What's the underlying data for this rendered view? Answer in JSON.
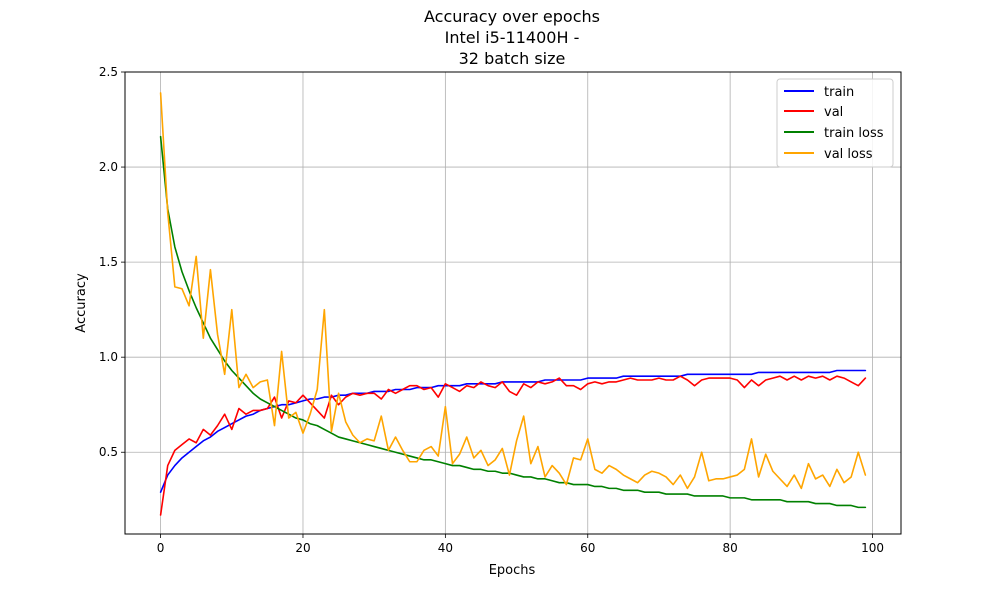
{
  "chart_data": {
    "type": "line",
    "title_lines": [
      "Accuracy over epochs",
      "Intel i5-11400H -",
      "32 batch size"
    ],
    "xlabel": "Epochs",
    "ylabel": "Accuracy",
    "xlim": [
      -5,
      104
    ],
    "ylim": [
      0.07,
      2.5
    ],
    "xticks": [
      0,
      20,
      40,
      60,
      80,
      100
    ],
    "yticks": [
      0.5,
      1.0,
      1.5,
      2.0,
      2.5
    ],
    "xtick_labels": [
      "0",
      "20",
      "40",
      "60",
      "80",
      "100"
    ],
    "ytick_labels": [
      "0.5",
      "1.0",
      "1.5",
      "2.0",
      "2.5"
    ],
    "grid": true,
    "legend_position": "top-right",
    "x": [
      0,
      1,
      2,
      3,
      4,
      5,
      6,
      7,
      8,
      9,
      10,
      11,
      12,
      13,
      14,
      15,
      16,
      17,
      18,
      19,
      20,
      21,
      22,
      23,
      24,
      25,
      26,
      27,
      28,
      29,
      30,
      31,
      32,
      33,
      34,
      35,
      36,
      37,
      38,
      39,
      40,
      41,
      42,
      43,
      44,
      45,
      46,
      47,
      48,
      49,
      50,
      51,
      52,
      53,
      54,
      55,
      56,
      57,
      58,
      59,
      60,
      61,
      62,
      63,
      64,
      65,
      66,
      67,
      68,
      69,
      70,
      71,
      72,
      73,
      74,
      75,
      76,
      77,
      78,
      79,
      80,
      81,
      82,
      83,
      84,
      85,
      86,
      87,
      88,
      89,
      90,
      91,
      92,
      93,
      94,
      95,
      96,
      97,
      98,
      99
    ],
    "series": [
      {
        "name": "train",
        "color": "#0000ff",
        "values": [
          0.29,
          0.38,
          0.43,
          0.47,
          0.5,
          0.53,
          0.56,
          0.58,
          0.61,
          0.63,
          0.65,
          0.67,
          0.69,
          0.7,
          0.72,
          0.73,
          0.74,
          0.75,
          0.75,
          0.76,
          0.77,
          0.78,
          0.78,
          0.79,
          0.79,
          0.8,
          0.8,
          0.81,
          0.81,
          0.81,
          0.82,
          0.82,
          0.82,
          0.83,
          0.83,
          0.83,
          0.84,
          0.84,
          0.84,
          0.85,
          0.85,
          0.85,
          0.85,
          0.86,
          0.86,
          0.86,
          0.86,
          0.86,
          0.87,
          0.87,
          0.87,
          0.87,
          0.87,
          0.87,
          0.88,
          0.88,
          0.88,
          0.88,
          0.88,
          0.88,
          0.89,
          0.89,
          0.89,
          0.89,
          0.89,
          0.9,
          0.9,
          0.9,
          0.9,
          0.9,
          0.9,
          0.9,
          0.9,
          0.9,
          0.91,
          0.91,
          0.91,
          0.91,
          0.91,
          0.91,
          0.91,
          0.91,
          0.91,
          0.91,
          0.92,
          0.92,
          0.92,
          0.92,
          0.92,
          0.92,
          0.92,
          0.92,
          0.92,
          0.92,
          0.92,
          0.93,
          0.93,
          0.93,
          0.93,
          0.93
        ]
      },
      {
        "name": "val",
        "color": "#ff0000",
        "values": [
          0.17,
          0.43,
          0.51,
          0.54,
          0.57,
          0.55,
          0.62,
          0.59,
          0.64,
          0.7,
          0.62,
          0.73,
          0.7,
          0.72,
          0.72,
          0.73,
          0.79,
          0.68,
          0.77,
          0.76,
          0.8,
          0.76,
          0.72,
          0.68,
          0.8,
          0.75,
          0.79,
          0.81,
          0.8,
          0.81,
          0.81,
          0.78,
          0.83,
          0.81,
          0.83,
          0.85,
          0.85,
          0.83,
          0.84,
          0.79,
          0.86,
          0.84,
          0.82,
          0.85,
          0.84,
          0.87,
          0.85,
          0.84,
          0.87,
          0.82,
          0.8,
          0.86,
          0.84,
          0.87,
          0.86,
          0.87,
          0.89,
          0.85,
          0.85,
          0.83,
          0.86,
          0.87,
          0.86,
          0.87,
          0.87,
          0.88,
          0.89,
          0.88,
          0.88,
          0.88,
          0.89,
          0.88,
          0.88,
          0.9,
          0.88,
          0.85,
          0.88,
          0.89,
          0.89,
          0.89,
          0.89,
          0.88,
          0.84,
          0.88,
          0.85,
          0.88,
          0.89,
          0.9,
          0.88,
          0.9,
          0.88,
          0.9,
          0.89,
          0.9,
          0.88,
          0.9,
          0.89,
          0.87,
          0.85,
          0.89
        ]
      },
      {
        "name": "train loss",
        "color": "#008000",
        "values": [
          2.16,
          1.78,
          1.58,
          1.45,
          1.35,
          1.26,
          1.18,
          1.1,
          1.04,
          0.98,
          0.93,
          0.89,
          0.85,
          0.81,
          0.78,
          0.76,
          0.74,
          0.72,
          0.7,
          0.68,
          0.67,
          0.65,
          0.64,
          0.62,
          0.6,
          0.58,
          0.57,
          0.56,
          0.55,
          0.54,
          0.53,
          0.52,
          0.51,
          0.5,
          0.49,
          0.48,
          0.47,
          0.46,
          0.46,
          0.45,
          0.44,
          0.43,
          0.43,
          0.42,
          0.41,
          0.41,
          0.4,
          0.4,
          0.39,
          0.39,
          0.38,
          0.37,
          0.37,
          0.36,
          0.36,
          0.35,
          0.34,
          0.34,
          0.33,
          0.33,
          0.33,
          0.32,
          0.32,
          0.31,
          0.31,
          0.3,
          0.3,
          0.3,
          0.29,
          0.29,
          0.29,
          0.28,
          0.28,
          0.28,
          0.28,
          0.27,
          0.27,
          0.27,
          0.27,
          0.27,
          0.26,
          0.26,
          0.26,
          0.25,
          0.25,
          0.25,
          0.25,
          0.25,
          0.24,
          0.24,
          0.24,
          0.24,
          0.23,
          0.23,
          0.23,
          0.22,
          0.22,
          0.22,
          0.21,
          0.21
        ]
      },
      {
        "name": "val loss",
        "color": "#ffa500",
        "values": [
          2.39,
          1.76,
          1.37,
          1.36,
          1.27,
          1.53,
          1.1,
          1.46,
          1.12,
          0.91,
          1.25,
          0.84,
          0.91,
          0.84,
          0.87,
          0.88,
          0.64,
          1.03,
          0.68,
          0.71,
          0.6,
          0.7,
          0.83,
          1.25,
          0.61,
          0.81,
          0.66,
          0.59,
          0.55,
          0.57,
          0.56,
          0.69,
          0.51,
          0.58,
          0.51,
          0.45,
          0.45,
          0.51,
          0.53,
          0.48,
          0.74,
          0.44,
          0.49,
          0.58,
          0.47,
          0.51,
          0.43,
          0.46,
          0.52,
          0.38,
          0.56,
          0.69,
          0.44,
          0.53,
          0.37,
          0.43,
          0.39,
          0.33,
          0.47,
          0.46,
          0.57,
          0.41,
          0.39,
          0.43,
          0.41,
          0.38,
          0.36,
          0.34,
          0.38,
          0.4,
          0.39,
          0.37,
          0.33,
          0.38,
          0.31,
          0.37,
          0.5,
          0.35,
          0.36,
          0.36,
          0.37,
          0.38,
          0.41,
          0.57,
          0.37,
          0.49,
          0.4,
          0.36,
          0.32,
          0.38,
          0.31,
          0.44,
          0.36,
          0.38,
          0.32,
          0.41,
          0.34,
          0.37,
          0.5,
          0.38
        ]
      }
    ]
  }
}
